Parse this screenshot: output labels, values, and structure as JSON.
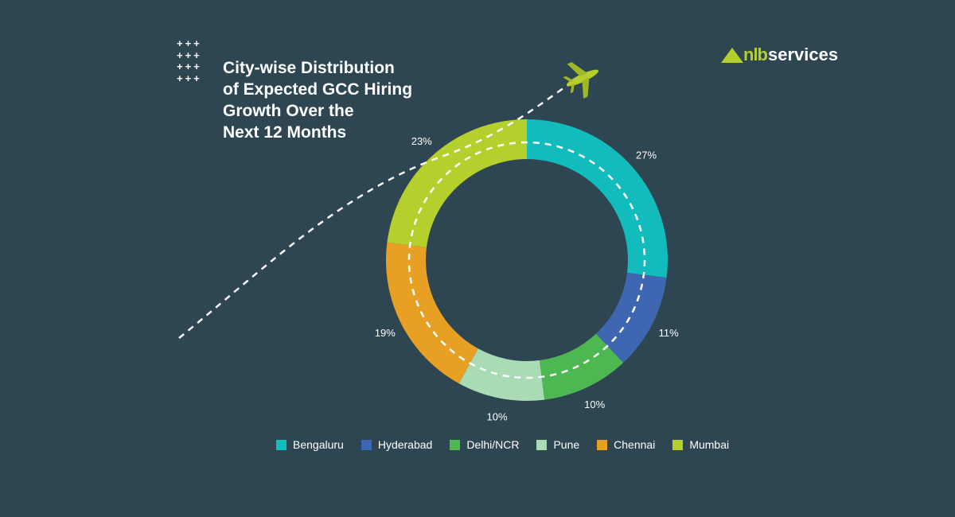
{
  "logo": {
    "text_a": "nlb",
    "text_b": "services",
    "color": "#b5cf2c"
  },
  "chart_data": {
    "type": "pie",
    "variant": "donut",
    "title": "City-wise Distribution of Expected GCC Hiring Growth Over the Next 12 Months",
    "title_lines": [
      "City-wise Distribution",
      "of Expected GCC Hiring",
      "Growth Over the",
      "Next 12 Months"
    ],
    "categories": [
      "Bengaluru",
      "Hyderabad",
      "Delhi/NCR",
      "Pune",
      "Chennai",
      "Mumbai"
    ],
    "values": [
      27,
      11,
      10,
      10,
      19,
      23
    ],
    "labels": [
      "27%",
      "11%",
      "10%",
      "10%",
      "19%",
      "23%"
    ],
    "colors": [
      "#13bcbc",
      "#3f66b0",
      "#4db851",
      "#a9dcb4",
      "#e8a024",
      "#b5cf2c"
    ],
    "legend_position": "bottom",
    "start": "top",
    "direction": "clockwise"
  },
  "colors": {
    "background": "#2d4651",
    "accent": "#b5cf2c"
  }
}
